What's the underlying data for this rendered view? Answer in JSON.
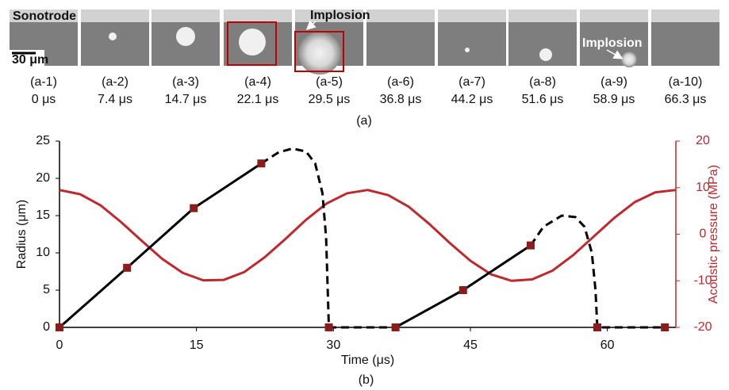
{
  "panel_a": {
    "images": [
      {
        "label": "(a-1)",
        "time": "0 μs"
      },
      {
        "label": "(a-2)",
        "time": "7.4 μs"
      },
      {
        "label": "(a-3)",
        "time": "14.7 μs"
      },
      {
        "label": "(a-4)",
        "time": "22.1 μs"
      },
      {
        "label": "(a-5)",
        "time": "29.5 μs"
      },
      {
        "label": "(a-6)",
        "time": "36.8 μs"
      },
      {
        "label": "(a-7)",
        "time": "44.2 μs"
      },
      {
        "label": "(a-8)",
        "time": "51.6 μs"
      },
      {
        "label": "(a-9)",
        "time": "58.9 μs"
      },
      {
        "label": "(a-10)",
        "time": "66.3 μs"
      }
    ],
    "sonotrode": "Sonotrode",
    "scale_bar": "30 μm",
    "implosion_1": "Implosion",
    "implosion_2": "Implosion",
    "caption": "(a)"
  },
  "chart_data": {
    "type": "line",
    "caption": "(b)",
    "xlabel": "Time (μs)",
    "ylabel": "Radius (μm)",
    "y2label": "Acoustic pressure (MPa)",
    "xlim": [
      0,
      67.5
    ],
    "xticks": [
      0,
      15,
      30,
      45,
      60
    ],
    "ylim": [
      0,
      25
    ],
    "yticks": [
      0,
      5,
      10,
      15,
      20,
      25
    ],
    "y2lim": [
      -20,
      20
    ],
    "y2ticks": [
      -20,
      -10,
      0,
      10,
      20
    ],
    "axis_color": "#000000",
    "y2_axis_color": "#c0282d",
    "series": [
      {
        "style": "line",
        "axis": "y2",
        "color": "#c0282d",
        "x": [
          0,
          2.25,
          4.5,
          6.75,
          9,
          11.25,
          13.5,
          15.75,
          18,
          20.25,
          22.5,
          24.75,
          27,
          29.25,
          31.5,
          33.75,
          36,
          38.25,
          40.5,
          42.75,
          45,
          47.25,
          49.5,
          51.75,
          54,
          56.25,
          58.5,
          60.75,
          63,
          65.25,
          67.5
        ],
        "values": [
          9.5,
          8.6,
          6.2,
          2.6,
          -1.4,
          -5.3,
          -8.3,
          -9.9,
          -9.8,
          -8.1,
          -4.9,
          -1.0,
          3.1,
          6.6,
          8.8,
          9.5,
          8.4,
          5.9,
          2.2,
          -1.9,
          -5.7,
          -8.6,
          -10.0,
          -9.7,
          -7.8,
          -4.5,
          -0.5,
          3.5,
          6.9,
          9.0,
          9.5
        ]
      },
      {
        "style": "line",
        "color": "#000000",
        "x": [
          0,
          7.4,
          14.7,
          22.1,
          29.5,
          36.8,
          44.2,
          51.6
        ],
        "values": [
          0,
          8,
          16,
          22,
          null,
          0,
          5,
          11
        ]
      },
      {
        "style": "dashed",
        "color": "#000000",
        "x": [
          22.1,
          24,
          25.5,
          27,
          28,
          28.8,
          29.2,
          29.5,
          36.8,
          44.2,
          51.6,
          53,
          55,
          56.5,
          57.5,
          58.3,
          58.7,
          58.9,
          66.3
        ],
        "values": [
          22,
          23.5,
          24,
          23.6,
          22,
          18,
          12,
          0,
          0,
          null,
          11,
          13.5,
          15,
          14.8,
          13.5,
          10,
          5,
          0,
          0
        ]
      },
      {
        "style": "marker",
        "color": "#8b1c1c",
        "x": [
          0,
          7.4,
          14.7,
          22.1,
          29.5,
          36.8,
          44.2,
          51.6,
          58.9,
          66.3
        ],
        "values": [
          0,
          8,
          16,
          22,
          0,
          0,
          5,
          11,
          0,
          0
        ]
      }
    ]
  }
}
